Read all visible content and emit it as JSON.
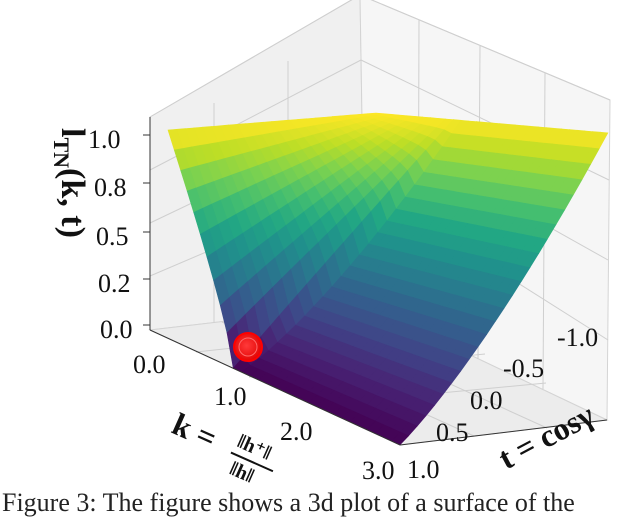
{
  "caption": "Figure 3: The figure shows a 3d plot of a surface of the",
  "chart_data": {
    "type": "surface",
    "title": "",
    "zlabel": {
      "main": "l",
      "sub": "TN",
      "args": "(k, t)"
    },
    "xlabel": {
      "lhs": "k = ",
      "num": "‖h⁺‖",
      "den": "‖h‖"
    },
    "ylabel": "t = cosγ",
    "x_ticks": [
      "0.0",
      "1.0",
      "2.0",
      "3.0"
    ],
    "y_ticks": [
      "-1.0",
      "-0.5",
      "0.0",
      "0.5",
      "1.0"
    ],
    "z_ticks": [
      "0.0",
      "0.2",
      "0.5",
      "0.8",
      "1.0"
    ],
    "x_range": [
      0,
      3
    ],
    "y_range": [
      -1,
      1
    ],
    "z_range": [
      0,
      1
    ],
    "colormap": "viridis",
    "marker": {
      "k": 1,
      "t": 1,
      "value": 0,
      "color": "#ff0000"
    },
    "surface_corners": {
      "k=0,t=1": 1.0,
      "k=0,t=-1": 1.0,
      "k=3,t=1": 0.0,
      "k=3,t=-1": 1.0,
      "k=1,t=1": 0.0
    }
  }
}
